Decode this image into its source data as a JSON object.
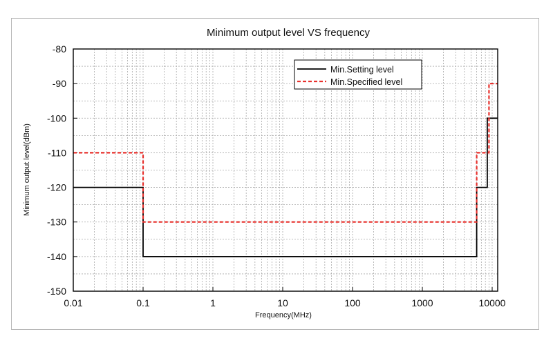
{
  "chart_data": {
    "type": "line",
    "title": "Minimum output level VS frequency",
    "xlabel": "Frequency(MHz)",
    "ylabel": "Minimum output level(dBm)",
    "xscale": "log",
    "xlim": [
      0.01,
      12000
    ],
    "ylim": [
      -150,
      -80
    ],
    "xticks": [
      0.01,
      0.1,
      1,
      10,
      100,
      1000,
      10000
    ],
    "xtick_labels": [
      "0.01",
      "0.1",
      "1",
      "10",
      "100",
      "1000",
      "10000"
    ],
    "yticks": [
      -150,
      -140,
      -130,
      -120,
      -110,
      -100,
      -90,
      -80
    ],
    "ytick_labels": [
      "-150",
      "-140",
      "-130",
      "-120",
      "-110",
      "-100",
      "-90",
      "-80"
    ],
    "grid": true,
    "legend_position": "top-right",
    "series": [
      {
        "name": "Min.Setting level",
        "color": "#000000",
        "style": "solid",
        "x": [
          0.01,
          0.1,
          0.1,
          6000,
          6000,
          8500,
          8500,
          12000
        ],
        "y": [
          -120,
          -120,
          -140,
          -140,
          -120,
          -120,
          -100,
          -100
        ]
      },
      {
        "name": "Min.Specified level",
        "color": "#e8302c",
        "style": "dashed",
        "x": [
          0.01,
          0.1,
          0.1,
          6000,
          6000,
          9000,
          9000,
          12000
        ],
        "y": [
          -110,
          -110,
          -130,
          -130,
          -110,
          -110,
          -90,
          -90
        ]
      }
    ]
  }
}
